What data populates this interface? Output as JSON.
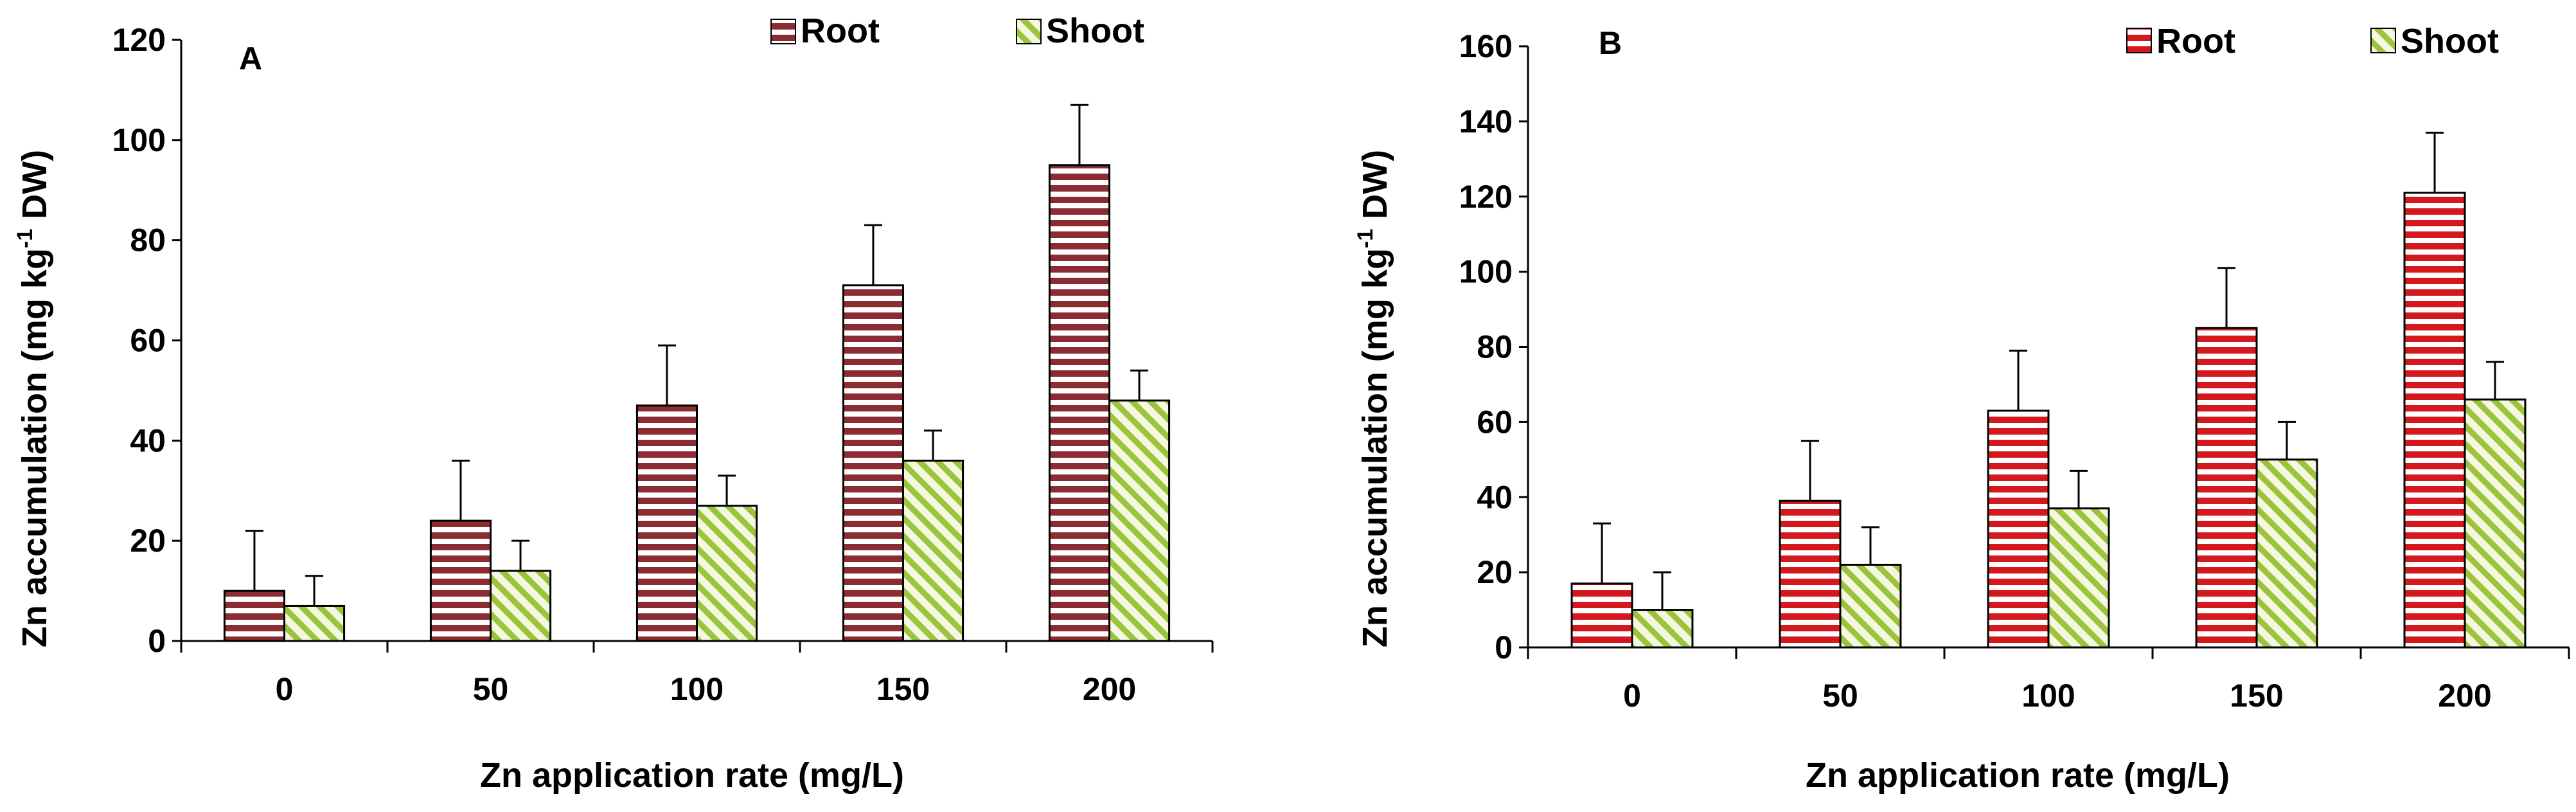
{
  "chart_data": [
    {
      "type": "bar",
      "panel_label": "A",
      "categories": [
        "0",
        "50",
        "100",
        "150",
        "200"
      ],
      "series": [
        {
          "name": "Root",
          "values": [
            10,
            24,
            47,
            71,
            95
          ],
          "errors": [
            12,
            12,
            12,
            12,
            12
          ],
          "color": "#8b2c33",
          "stripe_bg": "#ffffff"
        },
        {
          "name": "Shoot",
          "values": [
            7,
            14,
            27,
            36,
            48
          ],
          "errors": [
            6,
            6,
            6,
            6,
            6
          ],
          "color": "#9cc33c",
          "stripe_bg": "#f4f8e1"
        }
      ],
      "xlabel": "Zn application rate (mg/L)",
      "ylabel": "Zn accumulation (mg kg",
      "ylabel_sup": "-1",
      "ylabel_end": " DW)",
      "ylim": [
        0,
        120
      ],
      "yticks": [
        "0",
        "20",
        "40",
        "60",
        "80",
        "100",
        "120"
      ],
      "legend_position": "top-right"
    },
    {
      "type": "bar",
      "panel_label": "B",
      "categories": [
        "0",
        "50",
        "100",
        "150",
        "200"
      ],
      "series": [
        {
          "name": "Root",
          "values": [
            17,
            39,
            63,
            85,
            121
          ],
          "errors": [
            16,
            16,
            16,
            16,
            16
          ],
          "color": "#d4181e",
          "stripe_bg": "#ffffff"
        },
        {
          "name": "Shoot",
          "values": [
            10,
            22,
            37,
            50,
            66
          ],
          "errors": [
            10,
            10,
            10,
            10,
            10
          ],
          "color": "#9cc33c",
          "stripe_bg": "#f4f8e1"
        }
      ],
      "xlabel": "Zn application rate (mg/L)",
      "ylabel": "Zn accumulation (mg kg",
      "ylabel_sup": "-1",
      "ylabel_end": " DW)",
      "ylim": [
        0,
        160
      ],
      "yticks": [
        "0",
        "20",
        "40",
        "60",
        "80",
        "100",
        "120",
        "140",
        "160"
      ],
      "legend_position": "top-right"
    }
  ]
}
